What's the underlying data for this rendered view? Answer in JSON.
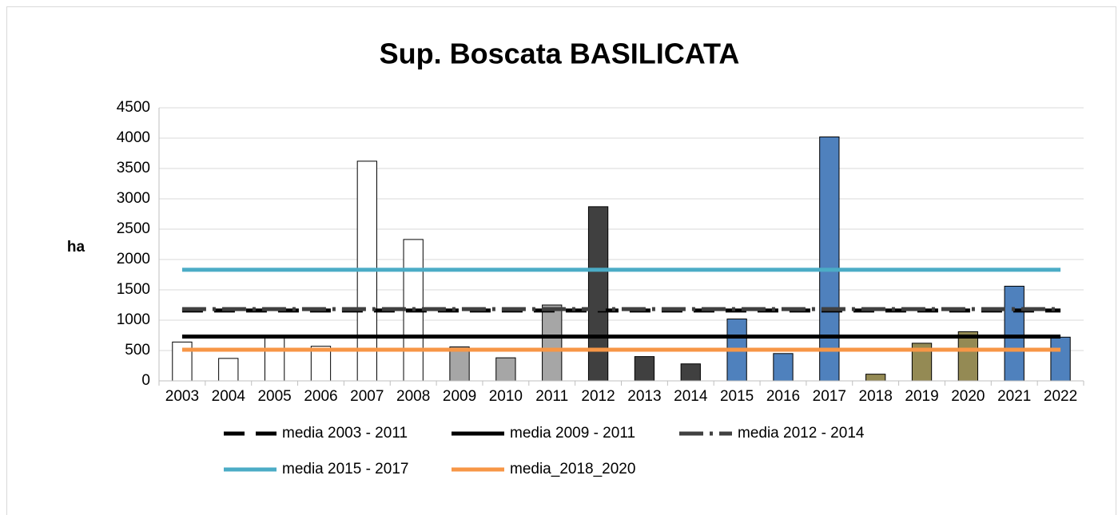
{
  "chart_data": {
    "type": "bar",
    "title": "Sup. Boscata BASILICATA",
    "y_label": "ha",
    "categories": [
      "2003",
      "2004",
      "2005",
      "2006",
      "2007",
      "2008",
      "2009",
      "2010",
      "2011",
      "2012",
      "2013",
      "2014",
      "2015",
      "2016",
      "2017",
      "2018",
      "2019",
      "2020",
      "2021",
      "2022"
    ],
    "values": [
      640,
      370,
      720,
      570,
      3620,
      2330,
      560,
      380,
      1250,
      2870,
      400,
      280,
      1020,
      450,
      4020,
      110,
      620,
      810,
      1560,
      720
    ],
    "colors": [
      "#ffffff",
      "#ffffff",
      "#ffffff",
      "#ffffff",
      "#ffffff",
      "#ffffff",
      "#a6a6a6",
      "#a6a6a6",
      "#a6a6a6",
      "#404040",
      "#404040",
      "#404040",
      "#4f81bd",
      "#4f81bd",
      "#4f81bd",
      "#948a54",
      "#948a54",
      "#948a54",
      "#4f81bd",
      "#4f81bd"
    ],
    "ylim": [
      0,
      4500
    ],
    "yticks": [
      0,
      500,
      1000,
      1500,
      2000,
      2500,
      3000,
      3500,
      4000,
      4500
    ],
    "grid": true,
    "legend": "bottom",
    "series": [
      {
        "name": "media 2003 - 2011",
        "color": "#000000",
        "dash": "dashed",
        "values": [
          1160,
          1160,
          1160,
          1160,
          1160,
          1160,
          1160,
          1160,
          1160,
          1160,
          1160,
          1160,
          1160,
          1160,
          1160,
          1160,
          1160,
          1160,
          1160,
          1160
        ]
      },
      {
        "name": "media 2009 - 2011",
        "color": "#000000",
        "dash": "solid",
        "values": [
          730,
          730,
          730,
          730,
          730,
          730,
          730,
          730,
          730,
          730,
          730,
          730,
          730,
          730,
          730,
          730,
          730,
          730,
          730,
          730
        ]
      },
      {
        "name": "media 2012 - 2014",
        "color": "#404040",
        "dash": "dash-dot",
        "values": [
          1183,
          1183,
          1183,
          1183,
          1183,
          1183,
          1183,
          1183,
          1183,
          1183,
          1183,
          1183,
          1183,
          1183,
          1183,
          1183,
          1183,
          1183,
          1183,
          1183
        ]
      },
      {
        "name": "media 2015 - 2017",
        "color": "#4bacc6",
        "dash": "solid",
        "values": [
          1830,
          1830,
          1830,
          1830,
          1830,
          1830,
          1830,
          1830,
          1830,
          1830,
          1830,
          1830,
          1830,
          1830,
          1830,
          1830,
          1830,
          1830,
          1830,
          1830
        ]
      },
      {
        "name": "media_2018_2020",
        "color": "#f79646",
        "dash": "solid",
        "values": [
          513,
          513,
          513,
          513,
          513,
          513,
          513,
          513,
          513,
          513,
          513,
          513,
          513,
          513,
          513,
          513,
          513,
          513,
          513,
          513
        ]
      }
    ]
  }
}
